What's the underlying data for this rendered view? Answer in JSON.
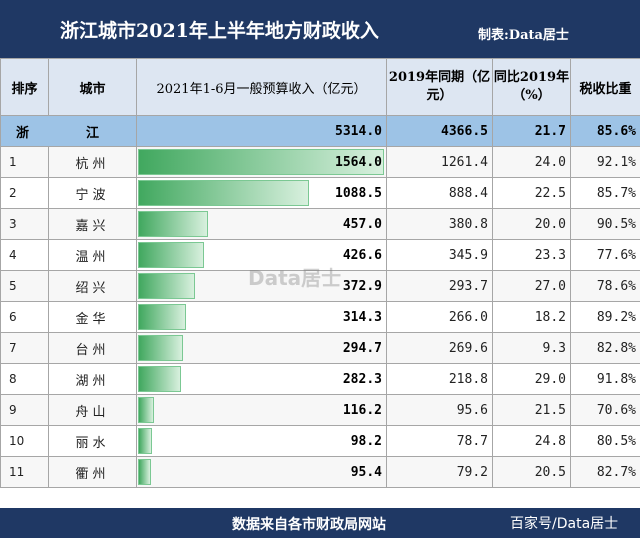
{
  "header": {
    "title": "浙江城市2021年上半年地方财政收入",
    "credit": "制表:Data居士"
  },
  "columns": {
    "rank": "排序",
    "city": "城市",
    "revenue": "2021年1-6月一般预算收入（亿元）",
    "prev": "2019年同期（亿元）",
    "growth": "同比2019年（%）",
    "tax_ratio": "税收比重"
  },
  "province": {
    "name": "浙　江",
    "revenue": "5314.0",
    "prev": "4366.5",
    "growth": "21.7",
    "tax_ratio": "85.6%"
  },
  "rows": [
    {
      "rank": "1",
      "city": "杭州",
      "revenue": "1564.0",
      "value": 1564.0,
      "prev": "1261.4",
      "growth": "24.0",
      "tax_ratio": "92.1%"
    },
    {
      "rank": "2",
      "city": "宁波",
      "revenue": "1088.5",
      "value": 1088.5,
      "prev": "888.4",
      "growth": "22.5",
      "tax_ratio": "85.7%"
    },
    {
      "rank": "3",
      "city": "嘉兴",
      "revenue": "457.0",
      "value": 457.0,
      "prev": "380.8",
      "growth": "20.0",
      "tax_ratio": "90.5%"
    },
    {
      "rank": "4",
      "city": "温州",
      "revenue": "426.6",
      "value": 426.6,
      "prev": "345.9",
      "growth": "23.3",
      "tax_ratio": "77.6%"
    },
    {
      "rank": "5",
      "city": "绍兴",
      "revenue": "372.9",
      "value": 372.9,
      "prev": "293.7",
      "growth": "27.0",
      "tax_ratio": "78.6%"
    },
    {
      "rank": "6",
      "city": "金华",
      "revenue": "314.3",
      "value": 314.3,
      "prev": "266.0",
      "growth": "18.2",
      "tax_ratio": "89.2%"
    },
    {
      "rank": "7",
      "city": "台州",
      "revenue": "294.7",
      "value": 294.7,
      "prev": "269.6",
      "growth": "9.3",
      "tax_ratio": "82.8%"
    },
    {
      "rank": "8",
      "city": "湖州",
      "revenue": "282.3",
      "value": 282.3,
      "prev": "218.8",
      "growth": "29.0",
      "tax_ratio": "91.8%"
    },
    {
      "rank": "9",
      "city": "舟山",
      "revenue": "116.2",
      "value": 116.2,
      "prev": "95.6",
      "growth": "21.5",
      "tax_ratio": "70.6%"
    },
    {
      "rank": "10",
      "city": "丽水",
      "revenue": "98.2",
      "value": 98.2,
      "prev": "78.7",
      "growth": "24.8",
      "tax_ratio": "80.5%"
    },
    {
      "rank": "11",
      "city": "衢州",
      "revenue": "95.4",
      "value": 95.4,
      "prev": "79.2",
      "growth": "20.5",
      "tax_ratio": "82.7%"
    }
  ],
  "bar_max": 1564.0,
  "bar_color": "#41a85f",
  "watermark": "Data居士",
  "footer": {
    "source": "数据来自各市财政局网站",
    "platform": "百家号/Data居士"
  }
}
